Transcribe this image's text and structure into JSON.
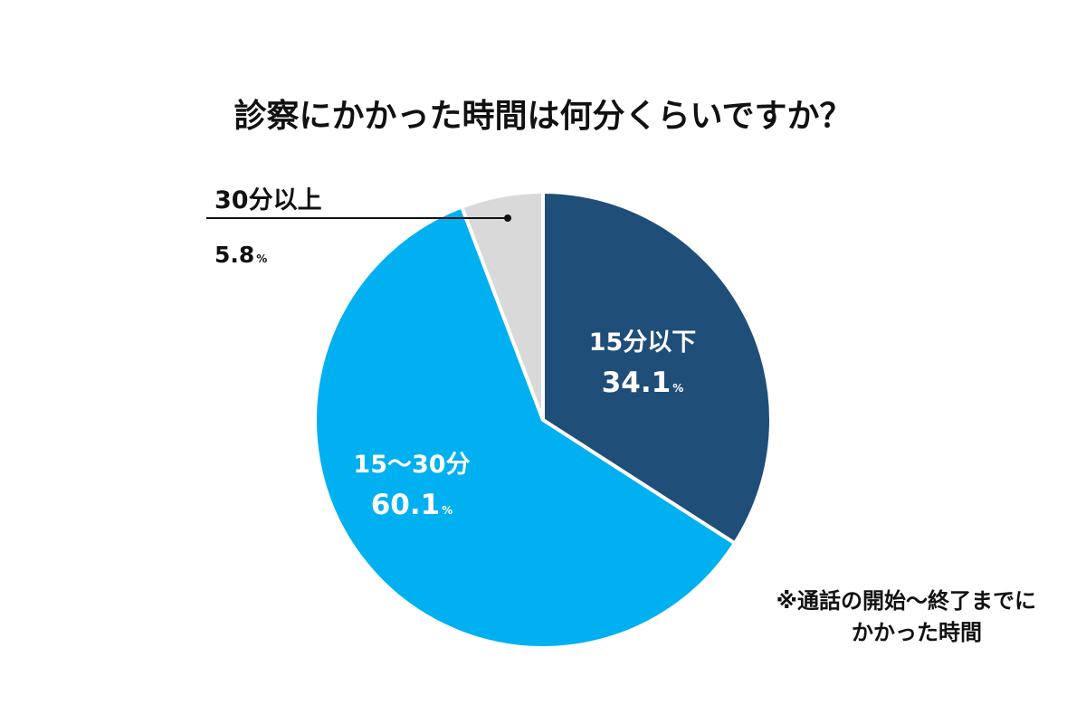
{
  "chart_data": {
    "type": "pie",
    "title": "診察にかかった時間は何分くらいですか？",
    "unit": "%",
    "slices": [
      {
        "label": "15分以下",
        "value": 34.1,
        "color": "#1f4e79",
        "label_color": "#ffffff",
        "value_text": "34.1"
      },
      {
        "label": "15〜30分",
        "value": 60.1,
        "color": "#00b0f0",
        "label_color": "#ffffff",
        "value_text": "60.1"
      },
      {
        "label": "30分以上",
        "value": 5.8,
        "color": "#d9d9d9",
        "label_color": "#111111",
        "value_text": "5.8"
      }
    ],
    "start_angle": "12 o'clock",
    "direction": "clockwise",
    "note_lines": [
      "※通話の開始〜終了までに",
      "かかった時間"
    ]
  }
}
